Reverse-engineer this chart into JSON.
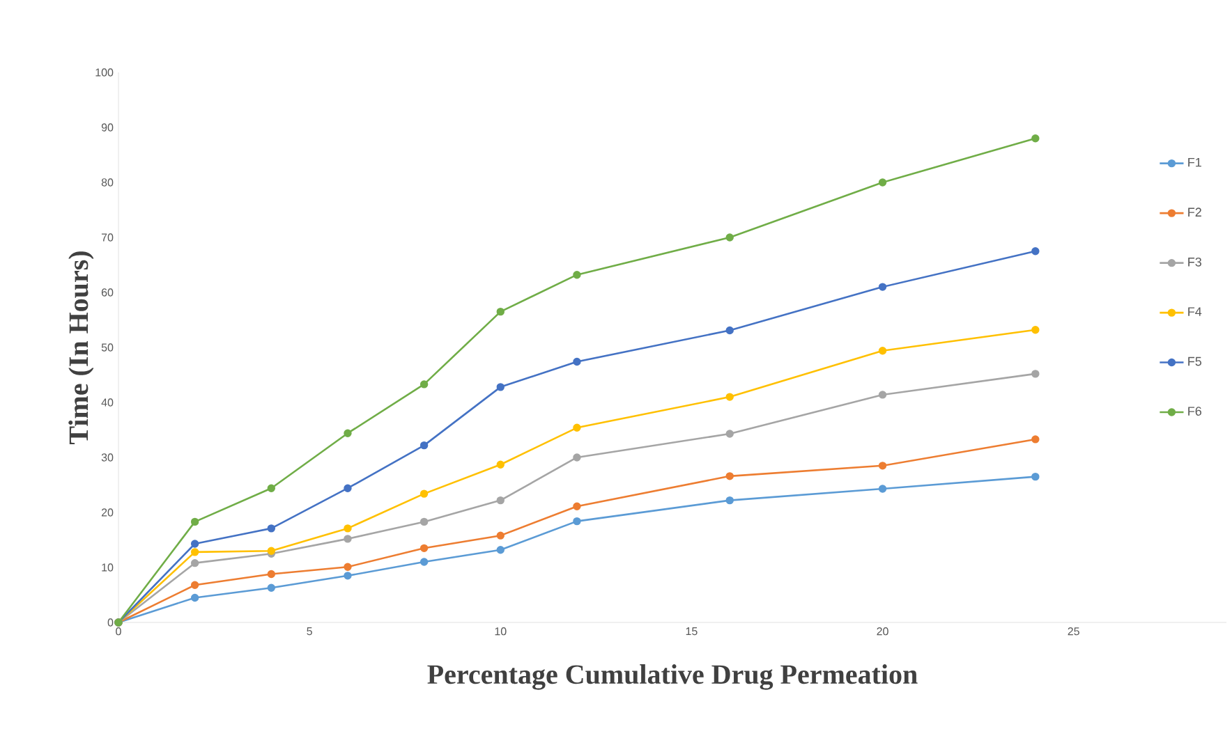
{
  "chart_data": {
    "type": "line",
    "xlabel": "Percentage Cumulative Drug Permeation",
    "ylabel": "Time (In Hours)",
    "x": [
      0,
      2,
      4,
      6,
      8,
      10,
      12,
      16,
      20,
      24
    ],
    "xlim": [
      0,
      29
    ],
    "xticks": [
      0,
      5,
      10,
      15,
      20,
      25
    ],
    "ylim": [
      0,
      100
    ],
    "yticks": [
      0,
      10,
      20,
      30,
      40,
      50,
      60,
      70,
      80,
      90,
      100
    ],
    "grid": false,
    "legend": "right",
    "marker": "circle",
    "line_style": "solid",
    "series": [
      {
        "name": "F1",
        "color": "#5b9bd5",
        "values": [
          0,
          4.5,
          6.3,
          8.5,
          11,
          13.2,
          18.4,
          22.2,
          24.3,
          26.5
        ]
      },
      {
        "name": "F2",
        "color": "#ed7d31",
        "values": [
          0,
          6.8,
          8.8,
          10.1,
          13.5,
          15.8,
          21.1,
          26.6,
          28.5,
          33.3
        ]
      },
      {
        "name": "F3",
        "color": "#a5a5a5",
        "values": [
          0,
          10.8,
          12.5,
          15.2,
          18.3,
          22.2,
          30,
          34.3,
          41.4,
          45.2
        ]
      },
      {
        "name": "F4",
        "color": "#ffc000",
        "values": [
          0,
          12.8,
          13,
          17.1,
          23.4,
          28.7,
          35.4,
          41,
          49.4,
          53.2
        ]
      },
      {
        "name": "F5",
        "color": "#4472c4",
        "values": [
          0,
          14.3,
          17.1,
          24.4,
          32.2,
          42.8,
          47.4,
          53.1,
          61,
          67.5
        ]
      },
      {
        "name": "F6",
        "color": "#70ad47",
        "values": [
          0,
          18.3,
          24.4,
          34.4,
          43.3,
          56.5,
          63.2,
          70,
          80,
          88
        ]
      }
    ]
  }
}
